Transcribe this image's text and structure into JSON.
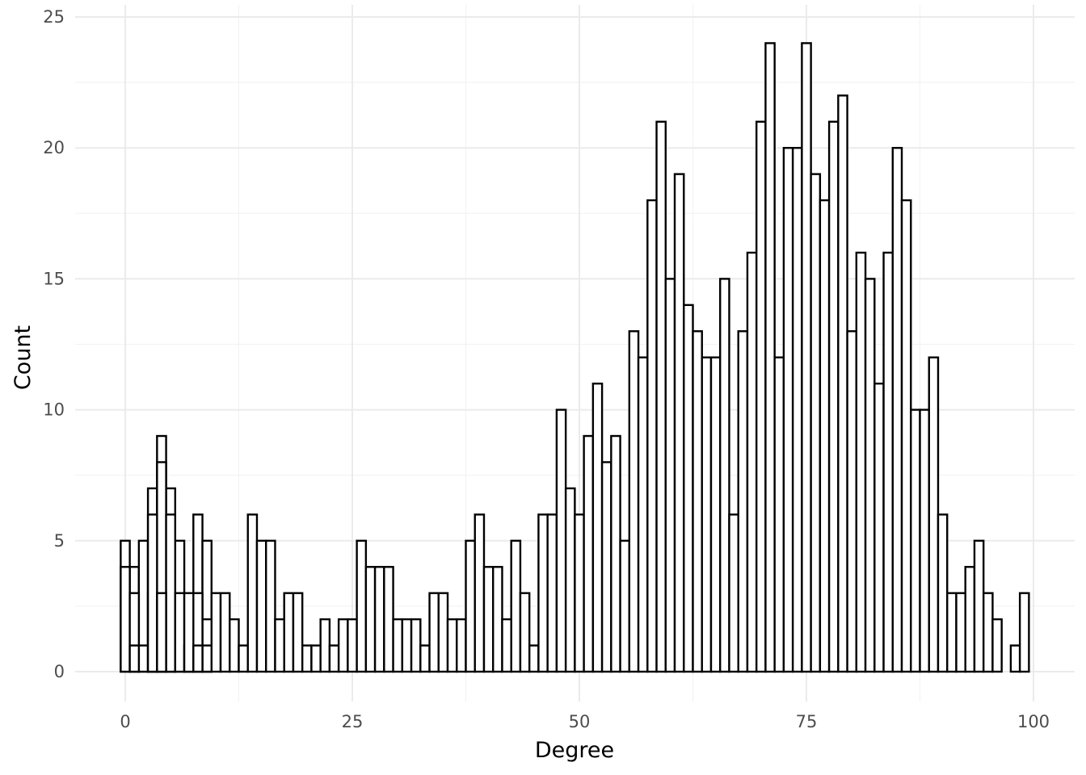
{
  "chart_data": {
    "type": "bar",
    "title": "",
    "xlabel": "Degree",
    "ylabel": "Count",
    "xlim": [
      -2.5,
      102.5
    ],
    "ylim": [
      -1.2,
      25.5
    ],
    "xticks": [
      0,
      25,
      50,
      75,
      100
    ],
    "xtick_labels": [
      "0",
      "25",
      "50",
      "75",
      "100"
    ],
    "yticks": [
      0,
      5,
      10,
      15,
      20,
      25
    ],
    "ytick_labels": [
      "0",
      "5",
      "10",
      "15",
      "20",
      "25"
    ],
    "grid": true,
    "bin_start": -0.5,
    "bin_width": 1,
    "x": [
      0,
      1,
      2,
      3,
      4,
      5,
      6,
      7,
      8,
      9,
      10,
      11,
      12,
      13,
      14,
      15,
      16,
      17,
      18,
      19,
      20,
      21,
      22,
      23,
      24,
      25,
      26,
      27,
      28,
      29,
      30,
      31,
      32,
      33,
      34,
      35,
      36,
      37,
      38,
      39,
      40,
      41,
      42,
      43,
      44,
      45,
      46,
      47,
      48,
      49,
      50,
      51,
      52,
      53,
      54,
      55,
      56,
      57,
      58,
      59,
      60,
      61,
      62,
      63,
      64,
      65,
      66,
      67,
      68,
      69,
      70,
      71,
      72,
      73,
      74,
      75,
      76,
      77,
      78,
      79,
      80,
      81,
      82,
      83,
      84,
      85,
      86,
      87,
      88,
      89,
      90,
      91,
      92,
      93,
      94,
      95,
      96,
      97,
      98,
      99
    ],
    "series": [
      {
        "values": [
          5,
          4,
          5,
          7,
          9,
          7,
          5,
          3,
          6,
          5,
          3,
          3,
          2,
          1,
          6,
          5,
          5,
          2,
          3,
          3,
          1,
          1,
          2,
          1,
          2,
          2,
          5,
          4,
          4,
          4,
          2,
          2,
          2,
          1,
          3,
          3,
          2,
          2,
          5,
          6,
          4,
          4,
          2,
          5,
          3,
          1,
          6,
          6,
          10,
          7,
          6,
          9,
          11,
          8,
          9,
          5,
          13,
          12,
          18,
          21,
          15,
          19,
          14,
          13,
          12,
          12,
          15,
          6,
          13,
          16,
          21,
          24,
          12,
          20,
          20,
          24,
          19,
          18,
          21,
          22,
          13,
          16,
          15,
          11,
          16,
          20,
          18,
          10,
          10,
          12,
          6,
          3,
          3,
          4,
          5,
          3,
          2,
          0,
          1,
          3
        ]
      },
      {
        "values": [
          4,
          3,
          1,
          5,
          3,
          1,
          0,
          0,
          0,
          2,
          0,
          0,
          0,
          0,
          0,
          0,
          0,
          0,
          0,
          0,
          0,
          0,
          0,
          0,
          0,
          0,
          0,
          0,
          0,
          0,
          0,
          0,
          0,
          0,
          0,
          0,
          0,
          0,
          0,
          0,
          0,
          0,
          0,
          0,
          0,
          0,
          0,
          0,
          0,
          0,
          0,
          0,
          0,
          0,
          0,
          0,
          0,
          0,
          0,
          0,
          0,
          0,
          0,
          0,
          0,
          0,
          0,
          0,
          0,
          0,
          0,
          0,
          0,
          0,
          0,
          0,
          0,
          0,
          0,
          0,
          0,
          0,
          0,
          0,
          0,
          0,
          0,
          0,
          0,
          0,
          0,
          0,
          0,
          0,
          0,
          0,
          0,
          0,
          0,
          0
        ]
      },
      {
        "values": [
          0,
          1,
          0,
          3,
          8,
          6,
          3,
          1,
          3,
          1,
          0,
          0,
          0,
          0,
          0,
          0,
          0,
          0,
          0,
          0,
          0,
          0,
          0,
          0,
          0,
          0,
          0,
          0,
          0,
          0,
          0,
          0,
          0,
          0,
          0,
          0,
          0,
          0,
          0,
          0,
          0,
          0,
          0,
          0,
          0,
          0,
          0,
          0,
          0,
          0,
          0,
          0,
          0,
          0,
          0,
          0,
          0,
          0,
          0,
          0,
          0,
          0,
          0,
          0,
          0,
          0,
          0,
          0,
          0,
          0,
          0,
          0,
          0,
          0,
          0,
          0,
          0,
          0,
          0,
          0,
          0,
          0,
          0,
          0,
          0,
          0,
          0,
          0,
          0,
          0,
          0,
          0,
          0,
          0,
          0,
          0,
          0,
          0,
          0,
          0
        ]
      },
      {
        "values": [
          0,
          0,
          0,
          6,
          3,
          0,
          0,
          3,
          1,
          0,
          0,
          0,
          0,
          0,
          0,
          0,
          0,
          0,
          0,
          0,
          0,
          0,
          0,
          0,
          0,
          0,
          0,
          0,
          0,
          0,
          0,
          0,
          0,
          0,
          0,
          0,
          0,
          0,
          0,
          0,
          0,
          0,
          0,
          0,
          0,
          0,
          0,
          0,
          0,
          0,
          0,
          0,
          0,
          0,
          0,
          0,
          0,
          0,
          0,
          0,
          0,
          0,
          0,
          0,
          0,
          0,
          0,
          0,
          0,
          0,
          0,
          0,
          0,
          0,
          0,
          0,
          0,
          0,
          0,
          0,
          0,
          0,
          0,
          0,
          0,
          0,
          0,
          0,
          0,
          0,
          0,
          0,
          0,
          0,
          0,
          0,
          0,
          0,
          0,
          0
        ]
      }
    ]
  }
}
